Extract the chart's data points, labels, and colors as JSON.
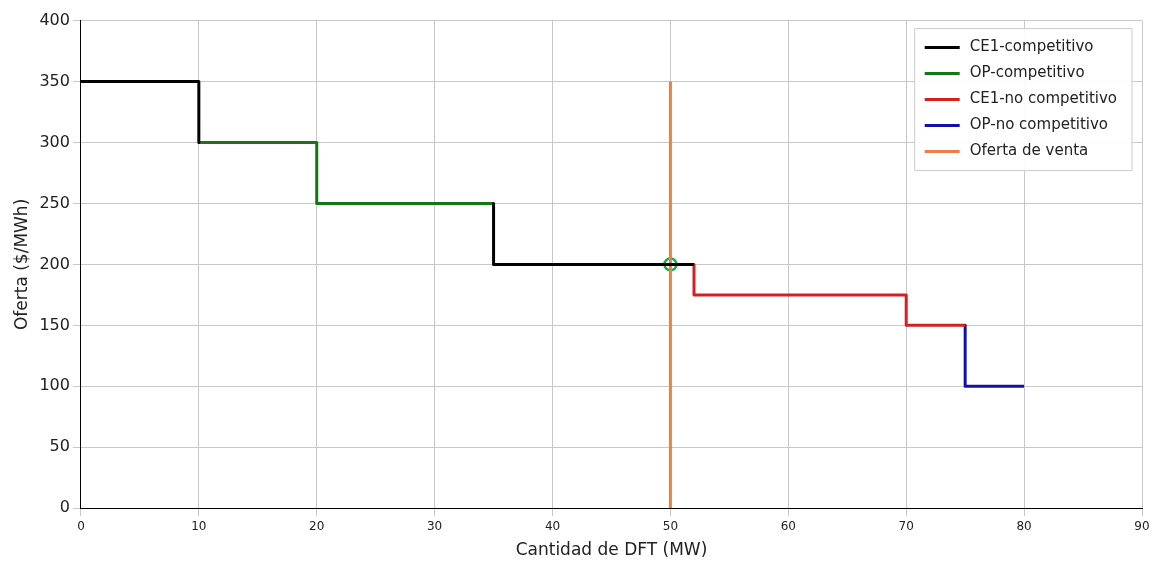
{
  "chart_data": {
    "type": "line",
    "xlabel": "Cantidad de DFT (MW)",
    "ylabel": "Oferta ($/MWh)",
    "xlim": [
      0,
      90
    ],
    "xticks": [
      0,
      10,
      20,
      30,
      40,
      50,
      60,
      70,
      80,
      90
    ],
    "ylim": [
      0,
      400
    ],
    "yticks": [
      0,
      50,
      100,
      150,
      200,
      250,
      300,
      350,
      400
    ],
    "grid": true,
    "legend": "top right",
    "marker": "none",
    "line_style": "solid",
    "series": [
      {
        "name": "CE1-competitivo",
        "color": "#000000",
        "x": [
          0,
          10,
          10,
          null,
          35,
          35,
          52
        ],
        "values": [
          350,
          350,
          300,
          null,
          250,
          200,
          200
        ]
      },
      {
        "name": "OP-competitivo",
        "color": "#107a10",
        "x": [
          10,
          20,
          20,
          35
        ],
        "values": [
          300,
          300,
          250,
          250
        ]
      },
      {
        "name": "CE1-no competitivo",
        "color": "#d62020",
        "x": [
          52,
          52,
          70,
          70,
          75
        ],
        "values": [
          200,
          175,
          175,
          150,
          150
        ]
      },
      {
        "name": "OP-no competitivo",
        "color": "#1010b0",
        "x": [
          75,
          75,
          80
        ],
        "values": [
          150,
          100,
          100
        ]
      },
      {
        "name": "Oferta de venta",
        "color": "#ed8040",
        "x": [
          50,
          50
        ],
        "values": [
          0,
          350
        ]
      },
      {
        "type": "scatter",
        "color": "#10b050",
        "marker": "circle",
        "x": [
          50
        ],
        "values": [
          200
        ]
      }
    ]
  }
}
